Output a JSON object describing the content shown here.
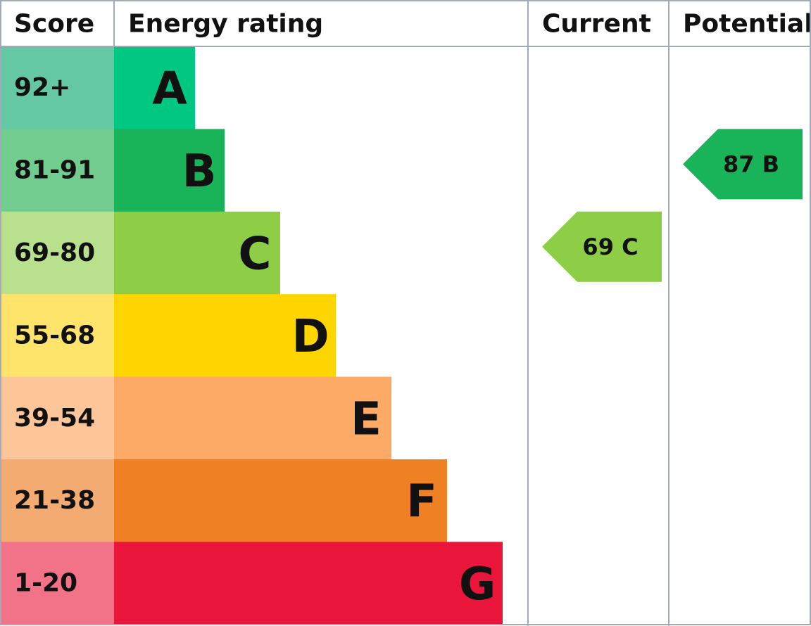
{
  "header": {
    "score": "Score",
    "energy_rating": "Energy rating",
    "current": "Current",
    "potential": "Potential"
  },
  "rows": [
    {
      "score": "92+",
      "rating": "A",
      "color": "#00c781",
      "score_color": "#64c8a4"
    },
    {
      "score": "81-91",
      "rating": "B",
      "color": "#19b459",
      "score_color": "#72cc8f"
    },
    {
      "score": "69-80",
      "rating": "C",
      "color": "#8dce46",
      "score_color": "#b9e08c"
    },
    {
      "score": "55-68",
      "rating": "D",
      "color": "#ffd500",
      "score_color": "#ffe46c"
    },
    {
      "score": "39-54",
      "rating": "E",
      "color": "#fcaa65",
      "score_color": "#fdc69a"
    },
    {
      "score": "21-38",
      "rating": "F",
      "color": "#ef8023",
      "score_color": "#f4ab72"
    },
    {
      "score": "1-20",
      "rating": "G",
      "color": "#e9153b",
      "score_color": "#f27388"
    }
  ],
  "current": {
    "score": 69,
    "rating": "C"
  },
  "potential": {
    "score": 87,
    "rating": "B"
  }
}
